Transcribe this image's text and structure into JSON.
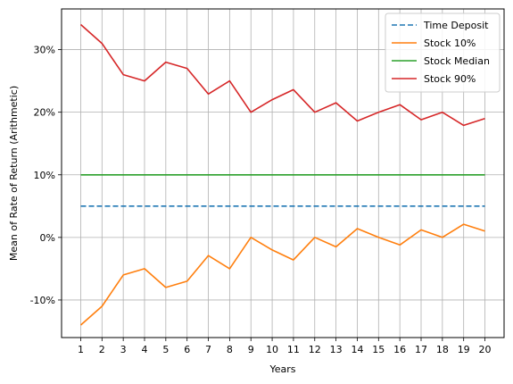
{
  "chart_data": {
    "type": "line",
    "title": "",
    "xlabel": "Years",
    "ylabel": "Mean of Rate of Return (Arithmetic)",
    "x": [
      1,
      2,
      3,
      4,
      5,
      6,
      7,
      8,
      9,
      10,
      11,
      12,
      13,
      14,
      15,
      16,
      17,
      18,
      19,
      20
    ],
    "xticks": [
      "1",
      "2",
      "3",
      "4",
      "5",
      "6",
      "7",
      "8",
      "9",
      "10",
      "11",
      "12",
      "13",
      "14",
      "15",
      "16",
      "17",
      "18",
      "19",
      "20"
    ],
    "yticks": [
      -10,
      0,
      10,
      20,
      30
    ],
    "ytick_labels": [
      "-10%",
      "0%",
      "10%",
      "20%",
      "30%"
    ],
    "xlim": [
      0.1,
      20.9
    ],
    "ylim": [
      -16,
      36.5
    ],
    "grid": true,
    "legend_position": "upper right",
    "series": [
      {
        "name": "Time Deposit",
        "color": "#1f77b4",
        "style": "dashed",
        "values": [
          5,
          5,
          5,
          5,
          5,
          5,
          5,
          5,
          5,
          5,
          5,
          5,
          5,
          5,
          5,
          5,
          5,
          5,
          5,
          5
        ]
      },
      {
        "name": "Stock 10%",
        "color": "#ff7f0e",
        "style": "solid",
        "values": [
          -14,
          -11,
          -6,
          -5,
          -8,
          -7,
          -2.9,
          -5,
          0,
          -2,
          -3.6,
          0,
          -1.5,
          1.4,
          0,
          -1.2,
          1.2,
          0,
          2.1,
          1
        ]
      },
      {
        "name": "Stock Median",
        "color": "#2ca02c",
        "style": "solid",
        "values": [
          10,
          10,
          10,
          10,
          10,
          10,
          10,
          10,
          10,
          10,
          10,
          10,
          10,
          10,
          10,
          10,
          10,
          10,
          10,
          10
        ]
      },
      {
        "name": "Stock 90%",
        "color": "#d62728",
        "style": "solid",
        "values": [
          34,
          31,
          26,
          25,
          28,
          27,
          22.9,
          25,
          20,
          22,
          23.6,
          20,
          21.5,
          18.6,
          20,
          21.2,
          18.8,
          20,
          17.9,
          19
        ]
      }
    ]
  }
}
